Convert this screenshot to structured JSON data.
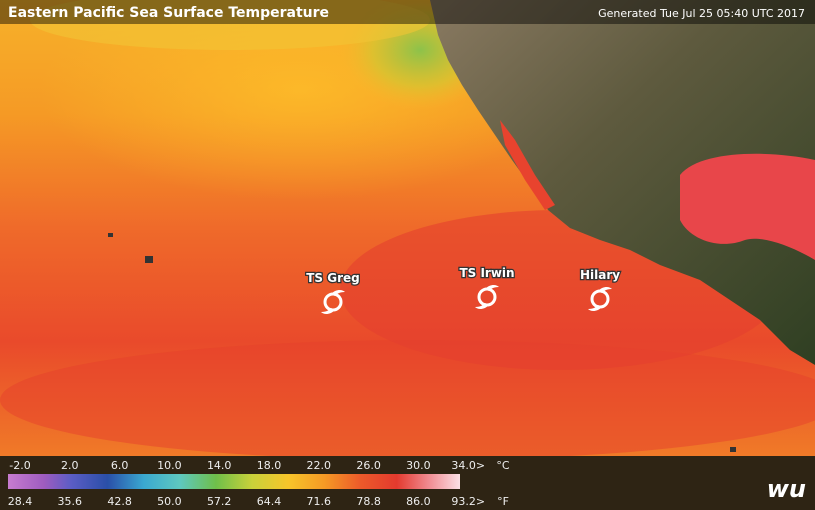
{
  "header": {
    "title": "Eastern Pacific Sea Surface Temperature",
    "generated": "Generated Tue Jul 25 05:40 UTC 2017"
  },
  "storms": [
    {
      "label": "TS Greg"
    },
    {
      "label": "TS Irwin"
    },
    {
      "label": "Hilary"
    }
  ],
  "legend": {
    "celsius_labels": [
      "-2.0",
      "2.0",
      "6.0",
      "10.0",
      "14.0",
      "18.0",
      "22.0",
      "26.0",
      "30.0",
      "34.0>"
    ],
    "celsius_unit": "°C",
    "fahrenheit_labels": [
      "28.4",
      "35.6",
      "42.8",
      "50.0",
      "57.2",
      "64.4",
      "71.6",
      "78.8",
      "86.0",
      "93.2>"
    ],
    "fahrenheit_unit": "°F"
  },
  "logo": "wu"
}
